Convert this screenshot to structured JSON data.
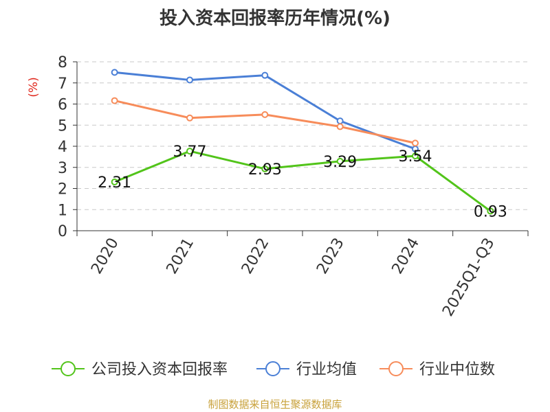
{
  "chart_data": {
    "type": "line",
    "title": "投入资本回报率历年情况(%)",
    "ylabel": "(%)",
    "categories": [
      "2020",
      "2021",
      "2022",
      "2023",
      "2024",
      "2025Q1-Q3"
    ],
    "ylim": [
      0,
      8
    ],
    "yticks": [
      "0",
      "1",
      "2",
      "3",
      "4",
      "5",
      "6",
      "7",
      "8"
    ],
    "grid": true,
    "legend_position": "bottom",
    "series": [
      {
        "name": "公司投入资本回报率",
        "color": "#52c41a",
        "values": [
          2.31,
          3.77,
          2.93,
          3.29,
          3.54,
          0.93
        ],
        "labels": [
          "2.31",
          "3.77",
          "2.93",
          "3.29",
          "3.54",
          "0.93"
        ]
      },
      {
        "name": "行业均值",
        "color": "#4a7fd6",
        "values": [
          7.5,
          7.14,
          7.36,
          5.2,
          3.87,
          null
        ]
      },
      {
        "name": "行业中位数",
        "color": "#f78c5a",
        "values": [
          6.16,
          5.34,
          5.5,
          4.93,
          4.15,
          null
        ]
      }
    ]
  },
  "source": "制图数据来自恒生聚源数据库"
}
